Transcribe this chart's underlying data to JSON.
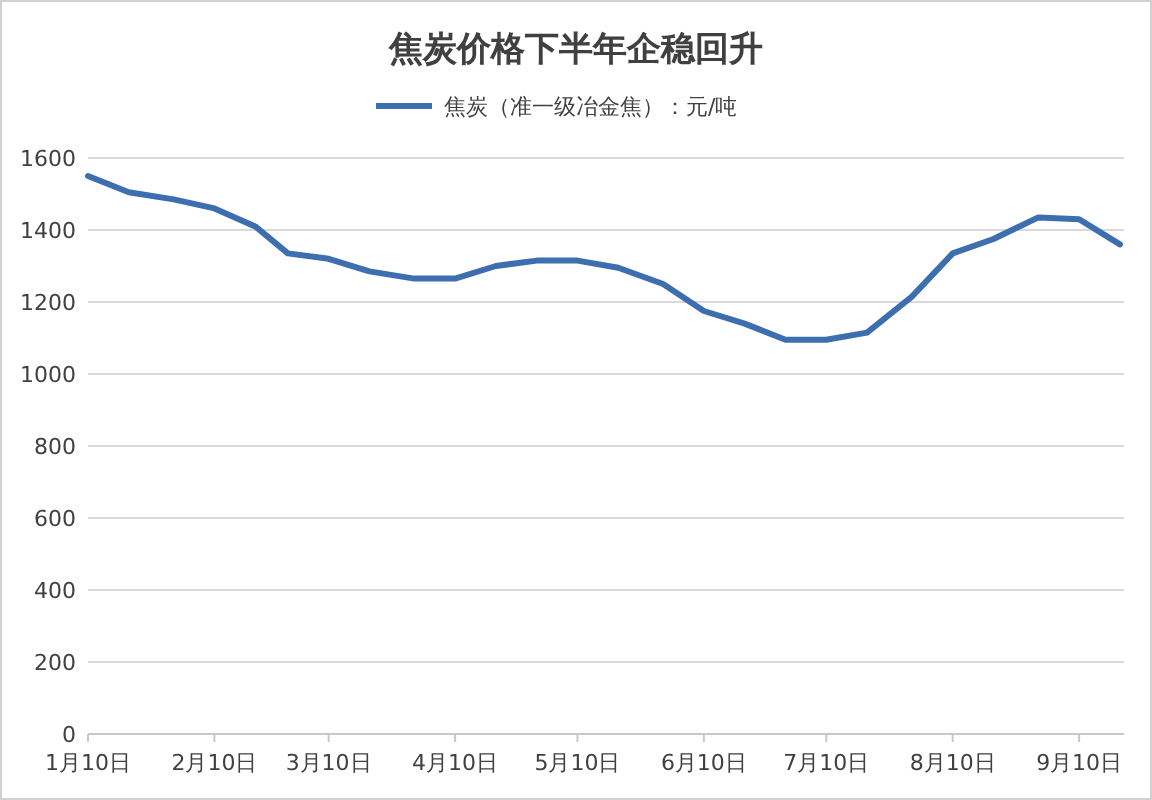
{
  "chart_data": {
    "type": "line",
    "title": "焦炭价格下半年企稳回升",
    "legend": "top",
    "grid": "y",
    "marker": "none",
    "line_style": "solid",
    "x": [
      "--01-10",
      "--01-20",
      "--01-31",
      "--02-10",
      "--02-20",
      "--02-28",
      "--03-10",
      "--03-20",
      "--03-31",
      "--04-10",
      "--04-20",
      "--04-30",
      "--05-10",
      "--05-20",
      "--05-31",
      "--06-10",
      "--06-20",
      "--06-30",
      "--07-10",
      "--07-20",
      "--07-31",
      "--08-10",
      "--08-20",
      "--08-31",
      "--09-10",
      "--09-20"
    ],
    "series": [
      {
        "name": "焦炭（准一级冶金焦）：元/吨",
        "color": "#3d6fb0",
        "values": [
          1550,
          1505,
          1485,
          1460,
          1410,
          1335,
          1320,
          1285,
          1265,
          1265,
          1300,
          1315,
          1315,
          1295,
          1250,
          1175,
          1140,
          1095,
          1095,
          1115,
          1215,
          1335,
          1375,
          1435,
          1430,
          1360
        ]
      }
    ],
    "xlim": [
      "--01-10",
      "--09-21"
    ],
    "xticks": [
      {
        "value": "--01-10",
        "label": "1月10日"
      },
      {
        "value": "--02-10",
        "label": "2月10日"
      },
      {
        "value": "--03-10",
        "label": "3月10日"
      },
      {
        "value": "--04-10",
        "label": "4月10日"
      },
      {
        "value": "--05-10",
        "label": "5月10日"
      },
      {
        "value": "--06-10",
        "label": "6月10日"
      },
      {
        "value": "--07-10",
        "label": "7月10日"
      },
      {
        "value": "--08-10",
        "label": "8月10日"
      },
      {
        "value": "--09-10",
        "label": "9月10日"
      }
    ],
    "ylim": [
      0,
      1600
    ],
    "yticks": [
      0,
      200,
      400,
      600,
      800,
      1000,
      1200,
      1400,
      1600
    ]
  }
}
